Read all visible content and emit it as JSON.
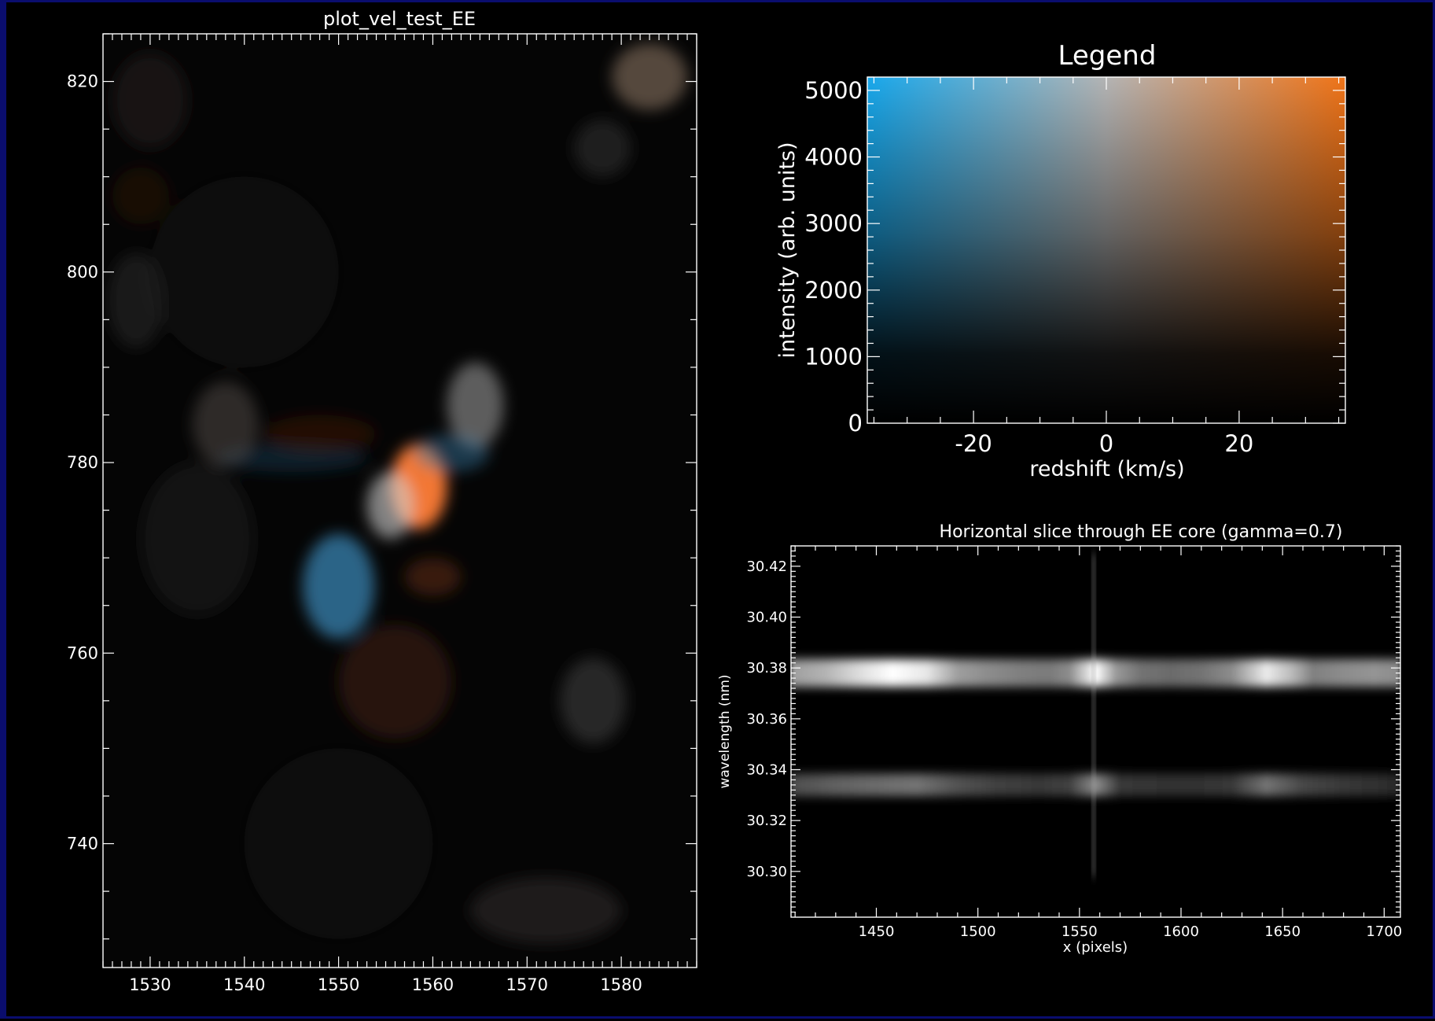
{
  "chart_data": [
    {
      "type": "heatmap",
      "title": "plot_vel_test_EE",
      "xlabel": "",
      "ylabel": "",
      "xlim": [
        1525,
        1588
      ],
      "ylim": [
        727,
        825
      ],
      "xticks": [
        1530,
        1540,
        1550,
        1560,
        1570,
        1580
      ],
      "yticks": [
        740,
        760,
        780,
        800,
        820
      ],
      "colormap": "blue-white-orange velocity/intensity",
      "features": [
        {
          "x": 1558.5,
          "y": 777.5,
          "sx": 3.0,
          "sy": 4.5,
          "r": 255,
          "g": 125,
          "b": 55,
          "a": 0.95
        },
        {
          "x": 1555.5,
          "y": 775.5,
          "sx": 2.5,
          "sy": 3.5,
          "r": 210,
          "g": 210,
          "b": 210,
          "a": 0.6
        },
        {
          "x": 1550.0,
          "y": 767.0,
          "sx": 3.8,
          "sy": 5.5,
          "r": 60,
          "g": 140,
          "b": 190,
          "a": 0.7
        },
        {
          "x": 1564.5,
          "y": 786.0,
          "sx": 3.0,
          "sy": 4.5,
          "r": 165,
          "g": 165,
          "b": 165,
          "a": 0.55
        },
        {
          "x": 1562.0,
          "y": 781.0,
          "sx": 4.0,
          "sy": 2.0,
          "r": 55,
          "g": 120,
          "b": 160,
          "a": 0.45
        },
        {
          "x": 1545.0,
          "y": 780.5,
          "sx": 8.0,
          "sy": 1.5,
          "r": 25,
          "g": 55,
          "b": 80,
          "a": 0.5
        },
        {
          "x": 1560.0,
          "y": 768.0,
          "sx": 3.0,
          "sy": 2.0,
          "r": 120,
          "g": 50,
          "b": 15,
          "a": 0.45
        },
        {
          "x": 1556.0,
          "y": 757.0,
          "sx": 6.0,
          "sy": 6.0,
          "r": 70,
          "g": 28,
          "b": 12,
          "a": 0.55
        },
        {
          "x": 1548.0,
          "y": 783.0,
          "sx": 6.0,
          "sy": 2.0,
          "r": 70,
          "g": 28,
          "b": 12,
          "a": 0.45
        },
        {
          "x": 1538.0,
          "y": 784.0,
          "sx": 3.5,
          "sy": 4.5,
          "r": 85,
          "g": 80,
          "b": 75,
          "a": 0.5
        },
        {
          "x": 1577.0,
          "y": 755.0,
          "sx": 3.5,
          "sy": 4.5,
          "r": 70,
          "g": 70,
          "b": 70,
          "a": 0.55
        },
        {
          "x": 1583.0,
          "y": 820.5,
          "sx": 4.0,
          "sy": 3.5,
          "r": 120,
          "g": 100,
          "b": 85,
          "a": 0.7
        },
        {
          "x": 1578.0,
          "y": 813.0,
          "sx": 3.0,
          "sy": 3.0,
          "r": 55,
          "g": 55,
          "b": 55,
          "a": 0.5
        },
        {
          "x": 1530.0,
          "y": 818.0,
          "sx": 4.0,
          "sy": 5.0,
          "r": 45,
          "g": 38,
          "b": 32,
          "a": 0.5
        },
        {
          "x": 1529.0,
          "y": 808.0,
          "sx": 3.0,
          "sy": 3.0,
          "r": 60,
          "g": 25,
          "b": 12,
          "a": 0.35
        },
        {
          "x": 1528.5,
          "y": 797.0,
          "sx": 3.0,
          "sy": 5.0,
          "r": 55,
          "g": 55,
          "b": 55,
          "a": 0.4
        },
        {
          "x": 1535.0,
          "y": 772.0,
          "sx": 6.0,
          "sy": 8.0,
          "r": 30,
          "g": 35,
          "b": 38,
          "a": 0.45
        },
        {
          "x": 1572.0,
          "y": 733.0,
          "sx": 8.0,
          "sy": 3.5,
          "r": 55,
          "g": 50,
          "b": 48,
          "a": 0.5
        },
        {
          "x": 1550.0,
          "y": 740.0,
          "sx": 10.0,
          "sy": 10.0,
          "r": 25,
          "g": 25,
          "b": 25,
          "a": 0.45
        },
        {
          "x": 1540.0,
          "y": 800.0,
          "sx": 10.0,
          "sy": 10.0,
          "r": 28,
          "g": 28,
          "b": 28,
          "a": 0.45
        }
      ]
    },
    {
      "type": "heatmap",
      "title": "Legend",
      "xlabel": "redshift (km/s)",
      "ylabel": "intensity (arb. units)",
      "xlim": [
        -36,
        36
      ],
      "ylim": [
        0,
        5200
      ],
      "xticks": [
        -20,
        0,
        20
      ],
      "yticks": [
        0,
        1000,
        2000,
        3000,
        4000,
        5000
      ],
      "colors": {
        "blue": "#18a8ec",
        "mid": "#b4b4b4",
        "red": "#f07418"
      }
    },
    {
      "type": "heatmap",
      "title": "Horizontal slice through EE core (gamma=0.7)",
      "xlabel": "x (pixels)",
      "ylabel": "wavelength (nm)",
      "xlim": [
        1408,
        1708
      ],
      "ylim": [
        30.282,
        30.428
      ],
      "xticks": [
        1450,
        1500,
        1550,
        1600,
        1650,
        1700
      ],
      "yticks": [
        "30.30",
        "30.32",
        "30.34",
        "30.36",
        "30.38",
        "30.40",
        "30.42"
      ],
      "lines": [
        {
          "wavelength": 30.378,
          "width": 0.005,
          "profile": [
            [
              1408,
              0.62
            ],
            [
              1425,
              0.7
            ],
            [
              1440,
              0.85
            ],
            [
              1458,
              1.0
            ],
            [
              1475,
              0.9
            ],
            [
              1490,
              0.62
            ],
            [
              1505,
              0.55
            ],
            [
              1520,
              0.5
            ],
            [
              1535,
              0.48
            ],
            [
              1545,
              0.55
            ],
            [
              1558,
              1.0
            ],
            [
              1568,
              0.6
            ],
            [
              1580,
              0.45
            ],
            [
              1595,
              0.42
            ],
            [
              1610,
              0.45
            ],
            [
              1625,
              0.55
            ],
            [
              1642,
              0.92
            ],
            [
              1655,
              0.72
            ],
            [
              1665,
              0.5
            ],
            [
              1680,
              0.55
            ],
            [
              1695,
              0.58
            ],
            [
              1708,
              0.55
            ]
          ]
        },
        {
          "wavelength": 30.334,
          "width": 0.004,
          "profile": [
            [
              1408,
              0.3
            ],
            [
              1430,
              0.38
            ],
            [
              1450,
              0.42
            ],
            [
              1470,
              0.45
            ],
            [
              1490,
              0.32
            ],
            [
              1510,
              0.25
            ],
            [
              1530,
              0.22
            ],
            [
              1545,
              0.25
            ],
            [
              1558,
              0.55
            ],
            [
              1570,
              0.22
            ],
            [
              1590,
              0.2
            ],
            [
              1610,
              0.2
            ],
            [
              1625,
              0.22
            ],
            [
              1642,
              0.45
            ],
            [
              1660,
              0.28
            ],
            [
              1680,
              0.22
            ],
            [
              1700,
              0.18
            ],
            [
              1708,
              0.15
            ]
          ]
        }
      ],
      "vertical_streak": {
        "x": 1557,
        "ymin": 30.298,
        "ymax": 30.425
      }
    }
  ]
}
